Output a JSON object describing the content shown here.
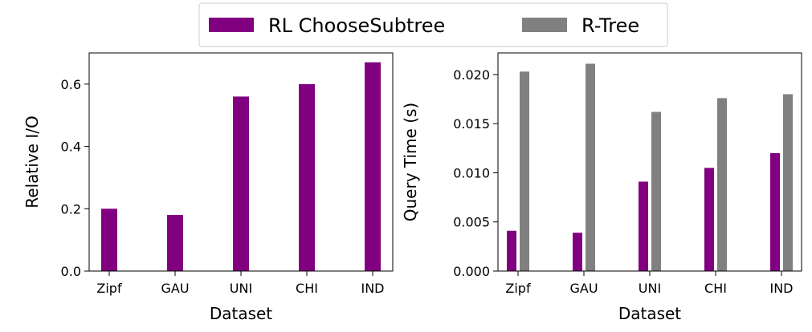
{
  "legend": {
    "entries": [
      {
        "label": "RL ChooseSubtree",
        "color": "#800080"
      },
      {
        "label": "R-Tree",
        "color": "#808080"
      }
    ]
  },
  "chart_data": [
    {
      "type": "bar",
      "categories": [
        "Zipf",
        "GAU",
        "UNI",
        "CHI",
        "IND"
      ],
      "series": [
        {
          "name": "RL ChooseSubtree",
          "color": "#800080",
          "values": [
            0.2,
            0.18,
            0.56,
            0.6,
            0.67
          ]
        }
      ],
      "xlabel": "Dataset",
      "ylabel": "Relative I/O",
      "ylim": [
        0,
        0.7
      ],
      "yticks": [
        0.0,
        0.2,
        0.4,
        0.6
      ],
      "ytick_labels": [
        "0.0",
        "0.2",
        "0.4",
        "0.6"
      ],
      "grid": false
    },
    {
      "type": "bar",
      "categories": [
        "Zipf",
        "GAU",
        "UNI",
        "CHI",
        "IND"
      ],
      "series": [
        {
          "name": "RL ChooseSubtree",
          "color": "#800080",
          "values": [
            0.0041,
            0.0039,
            0.0091,
            0.0105,
            0.012
          ]
        },
        {
          "name": "R-Tree",
          "color": "#808080",
          "values": [
            0.0203,
            0.0211,
            0.0162,
            0.0176,
            0.018
          ]
        }
      ],
      "xlabel": "Dataset",
      "ylabel": "Query Time (s)",
      "ylim": [
        0,
        0.0222
      ],
      "yticks": [
        0.0,
        0.005,
        0.01,
        0.015,
        0.02
      ],
      "ytick_labels": [
        "0.000",
        "0.005",
        "0.010",
        "0.015",
        "0.020"
      ],
      "grid": false
    }
  ]
}
